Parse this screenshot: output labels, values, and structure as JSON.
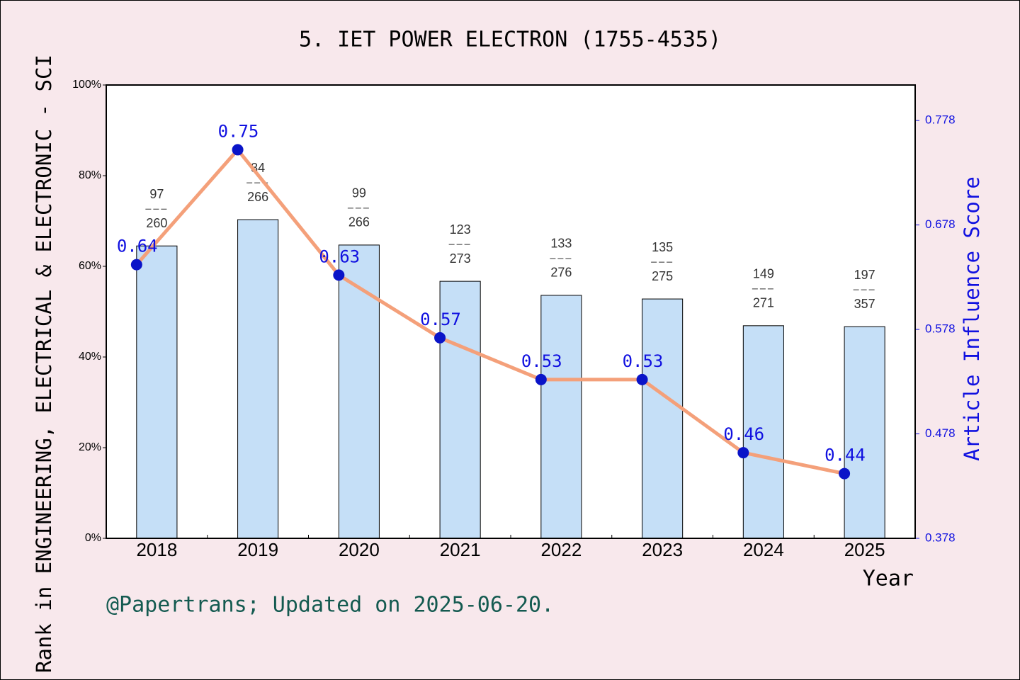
{
  "chart_data": {
    "type": "bar",
    "title": "5. IET POWER ELECTRON (1755-4535)",
    "xlabel": "Year",
    "ylabel": "Rank in ENGINEERING, ELECTRICAL & ELECTRONIC - SCI",
    "y2label": "Article Influence Score",
    "footer": "@Papertrans; Updated on 2025-06-20.",
    "categories": [
      "2018",
      "2019",
      "2020",
      "2021",
      "2022",
      "2023",
      "2024",
      "2025"
    ],
    "series": [
      {
        "type": "bar",
        "color": "#c5dff7",
        "values": [
          64.5,
          70.3,
          64.7,
          56.7,
          53.6,
          52.8,
          46.9,
          46.7
        ],
        "ranks": [
          97,
          84,
          99,
          123,
          133,
          135,
          149,
          197
        ],
        "totals": [
          260,
          266,
          266,
          273,
          276,
          275,
          271,
          357
        ]
      },
      {
        "type": "line",
        "axis": "y2",
        "color": "#f4a07a",
        "marker_color": "#0a14c8",
        "values": [
          0.64,
          0.75,
          0.63,
          0.57,
          0.53,
          0.53,
          0.46,
          0.44
        ]
      }
    ],
    "ylim": [
      0,
      100
    ],
    "yticks": [
      {
        "value": 0,
        "label": "0%"
      },
      {
        "value": 20,
        "label": "20%"
      },
      {
        "value": 40,
        "label": "40%"
      },
      {
        "value": 60,
        "label": "60%"
      },
      {
        "value": 80,
        "label": "80%"
      },
      {
        "value": 100,
        "label": "100%"
      }
    ],
    "y2lim": [
      0.378,
      0.812
    ],
    "y2ticks": [
      0.378,
      0.478,
      0.578,
      0.678,
      0.778
    ],
    "grid": false
  }
}
